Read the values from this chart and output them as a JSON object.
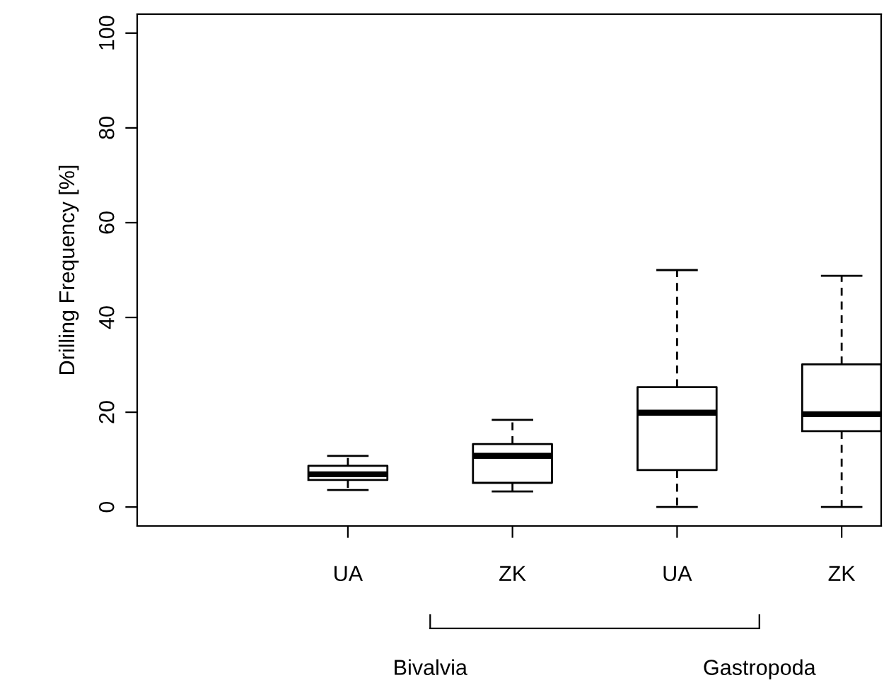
{
  "chart_data": {
    "type": "box",
    "ylabel": "Drilling Frequency [%]",
    "categories": [
      "UA",
      "ZK",
      "UA",
      "ZK"
    ],
    "boxes": [
      {
        "low": 3.6,
        "q1": 5.7,
        "median": 6.9,
        "q3": 8.7,
        "high": 10.8
      },
      {
        "low": 3.3,
        "q1": 5.1,
        "median": 10.8,
        "q3": 13.3,
        "high": 18.4
      },
      {
        "low": 0,
        "q1": 7.8,
        "median": 19.9,
        "q3": 25.3,
        "high": 50
      },
      {
        "low": 0,
        "q1": 16,
        "median": 19.6,
        "q3": 30.1,
        "high": 48.8
      }
    ],
    "ylim": [
      -4,
      104
    ],
    "yticks": [
      0,
      20,
      40,
      60,
      80,
      100
    ],
    "grid": false,
    "annotations": [
      "Bivalvia",
      "Gastropoda"
    ]
  }
}
